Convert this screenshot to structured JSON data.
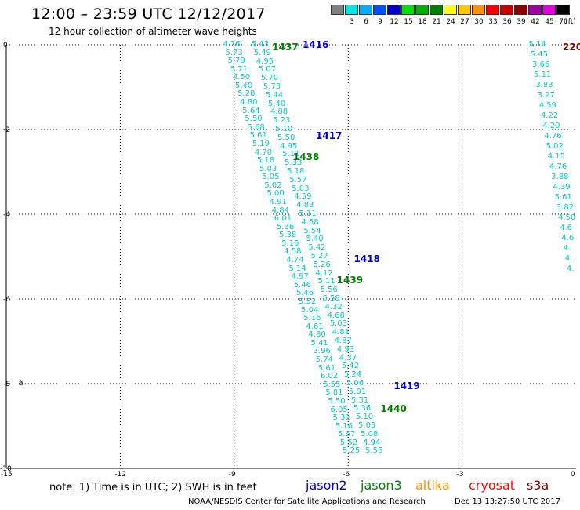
{
  "header": {
    "title": "12:00 – 23:59 UTC 12/12/2017",
    "subtitle": "12 hour collection of altimeter wave heights"
  },
  "color_scale": {
    "unit_label": "(ft)",
    "entries": [
      {
        "label": "",
        "color": "#808080"
      },
      {
        "label": "3",
        "color": "#00e5e5"
      },
      {
        "label": "6",
        "color": "#00b0ff"
      },
      {
        "label": "9",
        "color": "#0050ff"
      },
      {
        "label": "12",
        "color": "#0000c8"
      },
      {
        "label": "15",
        "color": "#00e000"
      },
      {
        "label": "18",
        "color": "#00b000"
      },
      {
        "label": "21",
        "color": "#008000"
      },
      {
        "label": "24",
        "color": "#ffff00"
      },
      {
        "label": "27",
        "color": "#ffc800"
      },
      {
        "label": "30",
        "color": "#ff9000"
      },
      {
        "label": "33",
        "color": "#ff0000"
      },
      {
        "label": "36",
        "color": "#c80000"
      },
      {
        "label": "39",
        "color": "#8b0000"
      },
      {
        "label": "42",
        "color": "#a000a0"
      },
      {
        "label": "45",
        "color": "#e000e0"
      },
      {
        "label": "70",
        "color": "#000000"
      }
    ]
  },
  "axes": {
    "y_ticks": [
      {
        "label": "0",
        "value": 0
      },
      {
        "label": "-2",
        "value": -2
      },
      {
        "label": "-4",
        "value": -4
      },
      {
        "label": "-6",
        "value": -6
      },
      {
        "label": "-8",
        "value": -8
      },
      {
        "label": "-10",
        "value": -10
      }
    ],
    "x_ticks": [
      {
        "label": "-15",
        "value": -15
      },
      {
        "label": "-12",
        "value": -12
      },
      {
        "label": "-9",
        "value": -9
      },
      {
        "label": "-6",
        "value": -6
      },
      {
        "label": "-3",
        "value": -3
      },
      {
        "label": "0",
        "value": 0
      }
    ]
  },
  "passes": [
    {
      "label": "1416",
      "color": "#0000cc",
      "x": -7.2,
      "y": 0.0
    },
    {
      "label": "1437",
      "color": "#008000",
      "x": -8.0,
      "y": -0.05
    },
    {
      "label": "1417",
      "color": "#0000cc",
      "x": -6.85,
      "y": -2.15
    },
    {
      "label": "1438",
      "color": "#008000",
      "x": -7.45,
      "y": -2.65
    },
    {
      "label": "1418",
      "color": "#0000cc",
      "x": -5.85,
      "y": -5.05
    },
    {
      "label": "1439",
      "color": "#008000",
      "x": -6.3,
      "y": -5.55
    },
    {
      "label": "1419",
      "color": "#0000cc",
      "x": -4.8,
      "y": -8.05
    },
    {
      "label": "1440",
      "color": "#008000",
      "x": -5.15,
      "y": -8.6
    },
    {
      "label": "220",
      "color": "#8b0000",
      "x": -0.35,
      "y": -0.05
    }
  ],
  "tracks": [
    {
      "name": "track-a",
      "x0": -9.05,
      "y0": 0.0,
      "x1": -5.9,
      "y1": -9.6,
      "values": [
        "4.76",
        "5.73",
        "5.79",
        "5.71",
        "4.50",
        "5.40",
        "5.28",
        "4.80",
        "5.64",
        "5.50",
        "5.68",
        "5.61",
        "5.19",
        "4.70",
        "5.18",
        "5.03",
        "5.05",
        "5.02",
        "5.00",
        "4.91",
        "4.84",
        "6.01",
        "5.36",
        "5.38",
        "5.16",
        "4.58",
        "4.74",
        "5.14",
        "4.97",
        "5.46",
        "5.46",
        "5.52",
        "5.04",
        "5.16",
        "4.61",
        "4.80",
        "5.41",
        "3.96",
        "5.74",
        "5.61",
        "6.02",
        "5.55",
        "5.81",
        "5.50",
        "6.05",
        "5.31",
        "5.16",
        "5.67",
        "5.52",
        "5.25"
      ]
    },
    {
      "name": "track-b",
      "x0": -8.3,
      "y0": 0.0,
      "x1": -5.3,
      "y1": -9.6,
      "values": [
        "5.43",
        "5.49",
        "4.95",
        "5.07",
        "5.70",
        "5.73",
        "5.44",
        "5.40",
        "4.88",
        "5.23",
        "5.10",
        "5.50",
        "4.95",
        "5.11",
        "5.33",
        "5.18",
        "5.57",
        "5.03",
        "4.59",
        "4.83",
        "5.11",
        "4.58",
        "5.54",
        "5.40",
        "5.42",
        "5.27",
        "5.26",
        "4.12",
        "5.11",
        "5.56",
        "5.59",
        "4.32",
        "4.68",
        "5.03",
        "4.81",
        "4.87",
        "4.93",
        "4.37",
        "5.42",
        "5.24",
        "5.06",
        "5.01",
        "5.31",
        "5.36",
        "5.10",
        "5.03",
        "5.08",
        "4.94",
        "5.56"
      ]
    },
    {
      "name": "track-c",
      "x0": -1.0,
      "y0": 0.0,
      "x1": 0.0,
      "y1": -5.3,
      "values": [
        "5.14",
        "5.45",
        "3.66",
        "5.11",
        "3.83",
        "3.27",
        "4.59",
        "4.22",
        "4.20",
        "4.76",
        "5.02",
        "4.15",
        "4.76",
        "3.88",
        "4.39",
        "5.61",
        "3.82",
        "4.50",
        "4.6",
        "4.6",
        "4.",
        "4.",
        "4."
      ]
    }
  ],
  "marker": {
    "label": "à",
    "x": -14.6,
    "y": -8.0
  },
  "footer": {
    "note": "note:  1) Time is in UTC;  2) SWH is in feet",
    "legend": [
      {
        "label": "jason2",
        "color": "#0000cc"
      },
      {
        "label": "jason3",
        "color": "#008000"
      },
      {
        "label": "altika",
        "color": "#ff9000"
      },
      {
        "label": "cryosat",
        "color": "#ff0000"
      },
      {
        "label": "s3a",
        "color": "#8b0000"
      }
    ],
    "credit": "NOAA/NESDIS Center for Satellite Applications and Research",
    "timestamp": "Dec 13 13:27:50 UTC 2017"
  }
}
